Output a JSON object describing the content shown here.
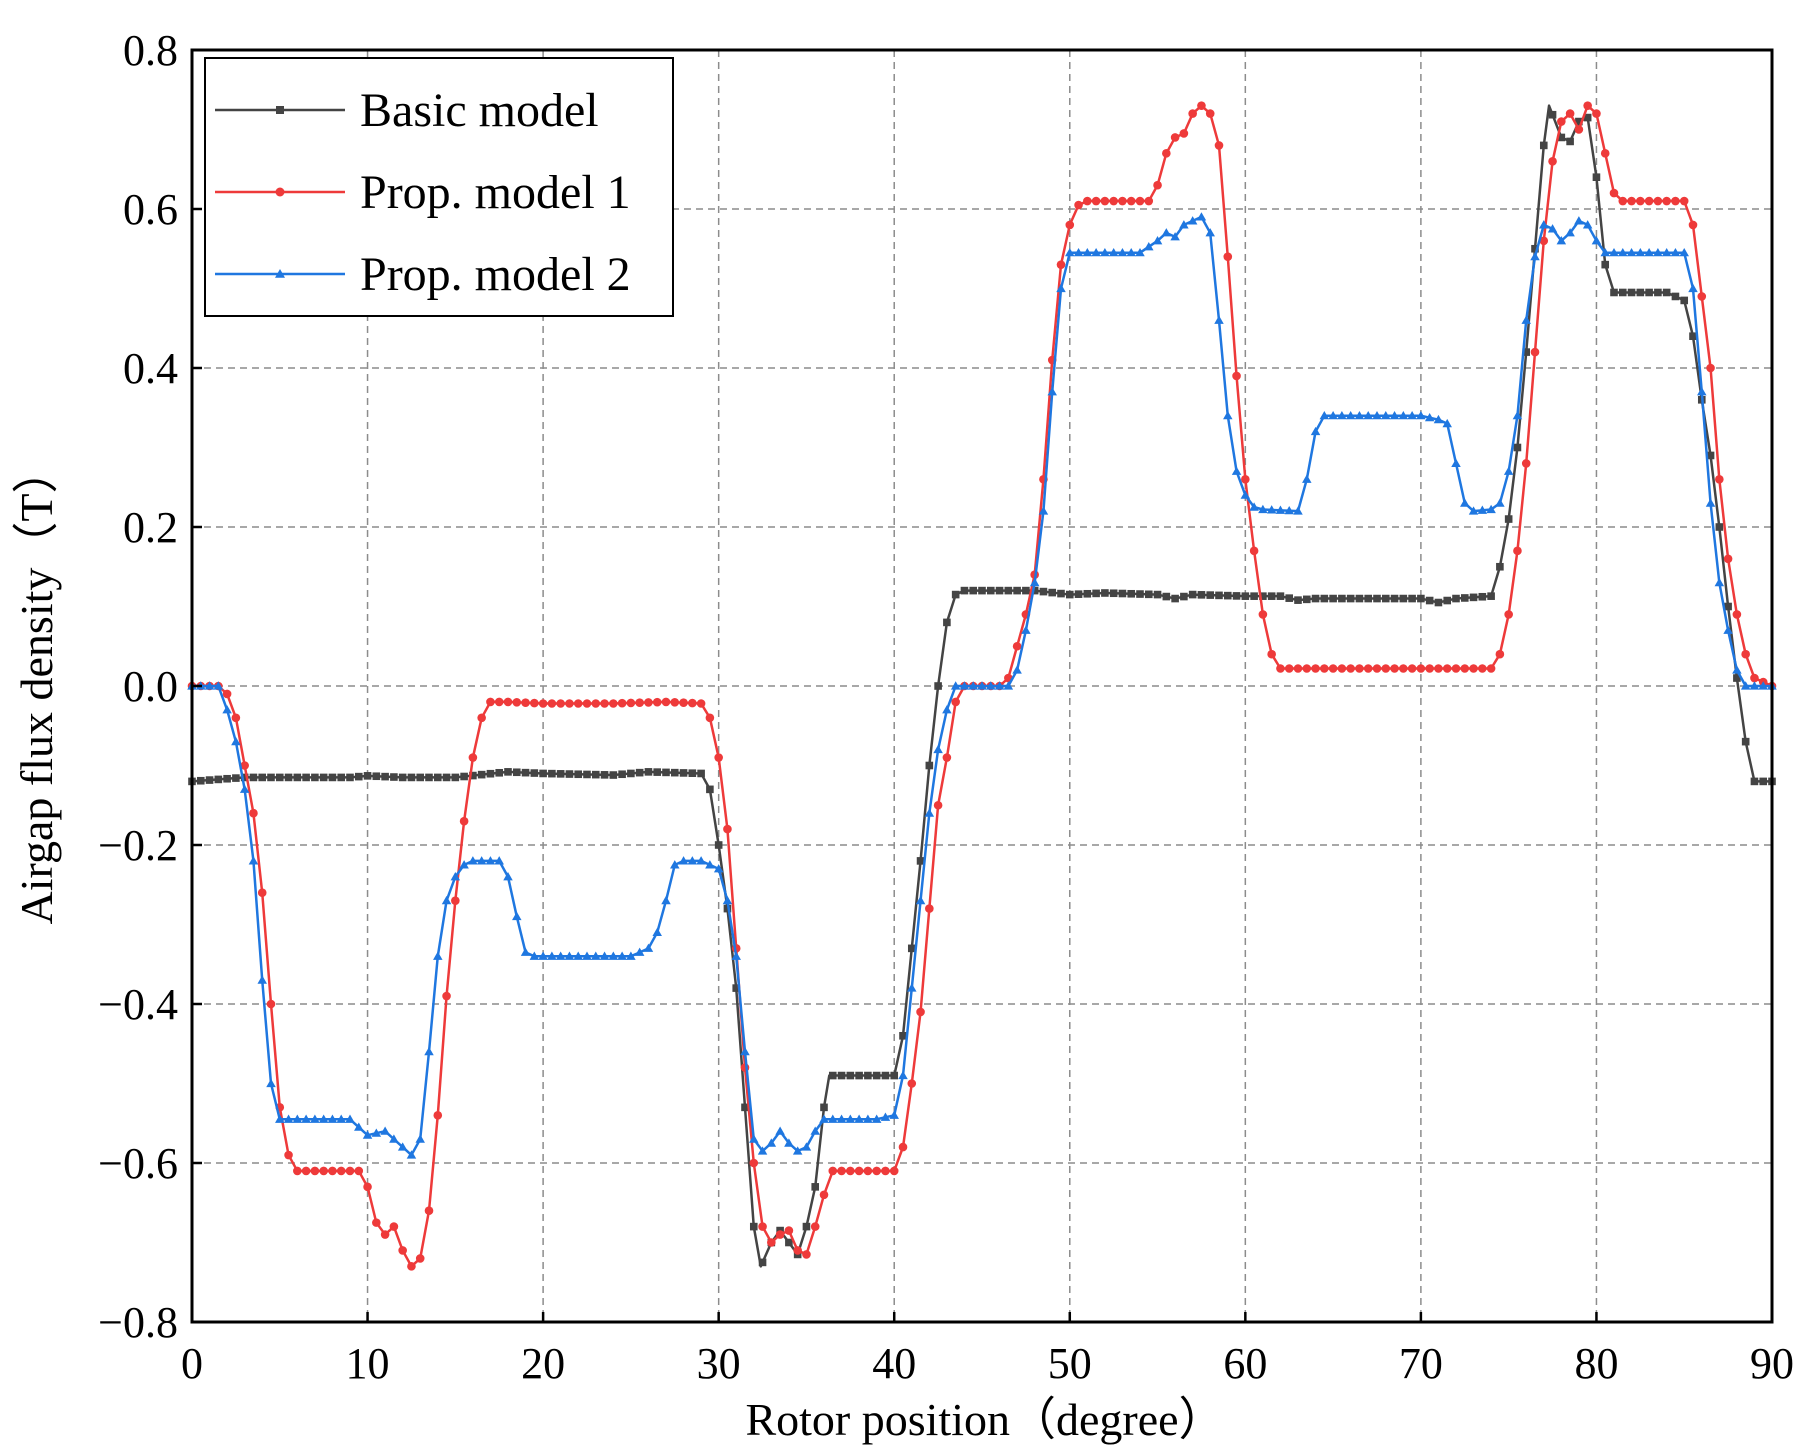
{
  "chart_data": {
    "type": "line",
    "title": "",
    "xlabel": "Rotor position（degree）",
    "ylabel": "Airgap flux density（T）",
    "xlim": [
      0,
      90
    ],
    "ylim": [
      -0.8,
      0.8
    ],
    "xticks": [
      0,
      10,
      20,
      30,
      40,
      50,
      60,
      70,
      80,
      90
    ],
    "yticks": [
      -0.8,
      -0.6,
      -0.4,
      -0.2,
      0.0,
      0.2,
      0.4,
      0.6,
      0.8
    ],
    "xtick_labels": [
      "0",
      "10",
      "20",
      "30",
      "40",
      "50",
      "60",
      "70",
      "80",
      "90"
    ],
    "ytick_labels": [
      "−0.8",
      "−0.6",
      "−0.4",
      "−0.2",
      "0.0",
      "0.2",
      "0.4",
      "0.6",
      "0.8"
    ],
    "grid": true,
    "legend_position": "top-left",
    "series": [
      {
        "name": "Basic model",
        "color": "#444444",
        "marker": "square",
        "points": [
          [
            0,
            -0.12
          ],
          [
            3,
            -0.115
          ],
          [
            6,
            -0.115
          ],
          [
            9,
            -0.115
          ],
          [
            10,
            -0.113
          ],
          [
            12,
            -0.115
          ],
          [
            15,
            -0.115
          ],
          [
            18,
            -0.108
          ],
          [
            20,
            -0.11
          ],
          [
            24,
            -0.112
          ],
          [
            26,
            -0.108
          ],
          [
            29,
            -0.11
          ],
          [
            29.5,
            -0.13
          ],
          [
            30,
            -0.2
          ],
          [
            30.5,
            -0.28
          ],
          [
            31,
            -0.38
          ],
          [
            31.5,
            -0.53
          ],
          [
            32,
            -0.68
          ],
          [
            32.4,
            -0.73
          ],
          [
            33,
            -0.7
          ],
          [
            33.5,
            -0.685
          ],
          [
            34,
            -0.7
          ],
          [
            34.5,
            -0.715
          ],
          [
            35,
            -0.68
          ],
          [
            35.5,
            -0.63
          ],
          [
            36,
            -0.53
          ],
          [
            36.3,
            -0.49
          ],
          [
            38,
            -0.49
          ],
          [
            40,
            -0.49
          ],
          [
            40.5,
            -0.44
          ],
          [
            41,
            -0.33
          ],
          [
            41.5,
            -0.22
          ],
          [
            42,
            -0.1
          ],
          [
            42.5,
            0.0
          ],
          [
            43,
            0.08
          ],
          [
            43.5,
            0.115
          ],
          [
            44,
            0.12
          ],
          [
            48,
            0.12
          ],
          [
            50,
            0.115
          ],
          [
            52,
            0.117
          ],
          [
            55,
            0.115
          ],
          [
            56,
            0.11
          ],
          [
            57,
            0.115
          ],
          [
            60,
            0.113
          ],
          [
            62,
            0.113
          ],
          [
            63,
            0.108
          ],
          [
            64,
            0.11
          ],
          [
            68,
            0.11
          ],
          [
            70,
            0.11
          ],
          [
            71,
            0.105
          ],
          [
            72,
            0.11
          ],
          [
            74,
            0.113
          ],
          [
            74.5,
            0.15
          ],
          [
            75,
            0.21
          ],
          [
            75.5,
            0.3
          ],
          [
            76,
            0.42
          ],
          [
            76.5,
            0.55
          ],
          [
            77,
            0.68
          ],
          [
            77.3,
            0.73
          ],
          [
            78,
            0.69
          ],
          [
            78.5,
            0.685
          ],
          [
            79,
            0.71
          ],
          [
            79.5,
            0.715
          ],
          [
            80,
            0.64
          ],
          [
            80.5,
            0.53
          ],
          [
            81,
            0.495
          ],
          [
            82,
            0.495
          ],
          [
            84,
            0.495
          ],
          [
            85,
            0.485
          ],
          [
            85.5,
            0.44
          ],
          [
            86,
            0.36
          ],
          [
            86.5,
            0.29
          ],
          [
            87,
            0.2
          ],
          [
            87.5,
            0.1
          ],
          [
            88,
            0.01
          ],
          [
            88.5,
            -0.07
          ],
          [
            89,
            -0.12
          ],
          [
            90,
            -0.12
          ]
        ]
      },
      {
        "name": "Prop. model 1",
        "color": "#ee3a3a",
        "marker": "circle",
        "points": [
          [
            0,
            0.0
          ],
          [
            1.5,
            0.0
          ],
          [
            2,
            -0.01
          ],
          [
            2.5,
            -0.04
          ],
          [
            3,
            -0.1
          ],
          [
            3.5,
            -0.16
          ],
          [
            4,
            -0.26
          ],
          [
            4.5,
            -0.4
          ],
          [
            5,
            -0.53
          ],
          [
            5.5,
            -0.59
          ],
          [
            6,
            -0.61
          ],
          [
            8,
            -0.61
          ],
          [
            9.5,
            -0.61
          ],
          [
            10,
            -0.63
          ],
          [
            10.5,
            -0.675
          ],
          [
            11,
            -0.69
          ],
          [
            11.5,
            -0.68
          ],
          [
            12,
            -0.71
          ],
          [
            12.5,
            -0.73
          ],
          [
            13,
            -0.72
          ],
          [
            13.5,
            -0.66
          ],
          [
            14,
            -0.54
          ],
          [
            14.5,
            -0.39
          ],
          [
            15,
            -0.27
          ],
          [
            15.5,
            -0.17
          ],
          [
            16,
            -0.09
          ],
          [
            16.5,
            -0.04
          ],
          [
            17,
            -0.02
          ],
          [
            18,
            -0.02
          ],
          [
            20,
            -0.022
          ],
          [
            24,
            -0.022
          ],
          [
            27,
            -0.02
          ],
          [
            29,
            -0.022
          ],
          [
            29.5,
            -0.04
          ],
          [
            30,
            -0.09
          ],
          [
            30.5,
            -0.18
          ],
          [
            31,
            -0.33
          ],
          [
            31.5,
            -0.48
          ],
          [
            32,
            -0.6
          ],
          [
            32.5,
            -0.68
          ],
          [
            33,
            -0.7
          ],
          [
            33.5,
            -0.69
          ],
          [
            34,
            -0.685
          ],
          [
            34.5,
            -0.71
          ],
          [
            35,
            -0.715
          ],
          [
            35.5,
            -0.68
          ],
          [
            36,
            -0.64
          ],
          [
            36.5,
            -0.61
          ],
          [
            38,
            -0.61
          ],
          [
            40,
            -0.61
          ],
          [
            40.5,
            -0.58
          ],
          [
            41,
            -0.5
          ],
          [
            41.5,
            -0.41
          ],
          [
            42,
            -0.28
          ],
          [
            42.5,
            -0.15
          ],
          [
            43,
            -0.09
          ],
          [
            43.5,
            -0.02
          ],
          [
            44,
            0.0
          ],
          [
            46,
            0.0
          ],
          [
            46.5,
            0.01
          ],
          [
            47,
            0.05
          ],
          [
            47.5,
            0.09
          ],
          [
            48,
            0.14
          ],
          [
            48.5,
            0.26
          ],
          [
            49,
            0.41
          ],
          [
            49.5,
            0.53
          ],
          [
            50,
            0.58
          ],
          [
            50.5,
            0.605
          ],
          [
            51,
            0.61
          ],
          [
            53,
            0.61
          ],
          [
            54.5,
            0.61
          ],
          [
            55,
            0.63
          ],
          [
            55.5,
            0.67
          ],
          [
            56,
            0.69
          ],
          [
            56.5,
            0.695
          ],
          [
            57,
            0.72
          ],
          [
            57.5,
            0.73
          ],
          [
            58,
            0.72
          ],
          [
            58.5,
            0.68
          ],
          [
            59,
            0.54
          ],
          [
            59.5,
            0.39
          ],
          [
            60,
            0.26
          ],
          [
            60.5,
            0.17
          ],
          [
            61,
            0.09
          ],
          [
            61.5,
            0.04
          ],
          [
            62,
            0.022
          ],
          [
            64,
            0.022
          ],
          [
            68,
            0.022
          ],
          [
            72,
            0.022
          ],
          [
            74,
            0.022
          ],
          [
            74.5,
            0.04
          ],
          [
            75,
            0.09
          ],
          [
            75.5,
            0.17
          ],
          [
            76,
            0.28
          ],
          [
            76.5,
            0.42
          ],
          [
            77,
            0.56
          ],
          [
            77.5,
            0.66
          ],
          [
            78,
            0.71
          ],
          [
            78.5,
            0.72
          ],
          [
            79,
            0.7
          ],
          [
            79.5,
            0.73
          ],
          [
            80,
            0.72
          ],
          [
            80.5,
            0.67
          ],
          [
            81,
            0.62
          ],
          [
            81.5,
            0.61
          ],
          [
            83,
            0.61
          ],
          [
            85,
            0.61
          ],
          [
            85.5,
            0.58
          ],
          [
            86,
            0.49
          ],
          [
            86.5,
            0.4
          ],
          [
            87,
            0.26
          ],
          [
            87.5,
            0.16
          ],
          [
            88,
            0.09
          ],
          [
            88.5,
            0.04
          ],
          [
            89,
            0.01
          ],
          [
            90,
            0.0
          ]
        ]
      },
      {
        "name": "Prop. model 2",
        "color": "#1f77e0",
        "marker": "triangle",
        "points": [
          [
            0,
            0.0
          ],
          [
            1.5,
            0.0
          ],
          [
            2,
            -0.03
          ],
          [
            2.5,
            -0.07
          ],
          [
            3,
            -0.13
          ],
          [
            3.5,
            -0.22
          ],
          [
            4,
            -0.37
          ],
          [
            4.5,
            -0.5
          ],
          [
            5,
            -0.545
          ],
          [
            6,
            -0.545
          ],
          [
            8,
            -0.545
          ],
          [
            9,
            -0.545
          ],
          [
            10,
            -0.565
          ],
          [
            11,
            -0.56
          ],
          [
            12,
            -0.58
          ],
          [
            12.5,
            -0.59
          ],
          [
            13,
            -0.57
          ],
          [
            13.5,
            -0.46
          ],
          [
            14,
            -0.34
          ],
          [
            14.5,
            -0.27
          ],
          [
            15,
            -0.24
          ],
          [
            15.5,
            -0.225
          ],
          [
            16,
            -0.22
          ],
          [
            17.5,
            -0.22
          ],
          [
            18,
            -0.24
          ],
          [
            18.5,
            -0.29
          ],
          [
            19,
            -0.335
          ],
          [
            19.5,
            -0.34
          ],
          [
            22,
            -0.34
          ],
          [
            25,
            -0.34
          ],
          [
            26,
            -0.33
          ],
          [
            26.5,
            -0.31
          ],
          [
            27,
            -0.27
          ],
          [
            27.5,
            -0.225
          ],
          [
            28,
            -0.22
          ],
          [
            29,
            -0.22
          ],
          [
            30,
            -0.23
          ],
          [
            30.5,
            -0.27
          ],
          [
            31,
            -0.34
          ],
          [
            31.5,
            -0.46
          ],
          [
            32,
            -0.57
          ],
          [
            32.5,
            -0.585
          ],
          [
            33,
            -0.575
          ],
          [
            33.5,
            -0.56
          ],
          [
            34,
            -0.575
          ],
          [
            34.5,
            -0.585
          ],
          [
            35,
            -0.58
          ],
          [
            35.5,
            -0.56
          ],
          [
            36,
            -0.545
          ],
          [
            37,
            -0.545
          ],
          [
            39,
            -0.545
          ],
          [
            40,
            -0.54
          ],
          [
            40.5,
            -0.49
          ],
          [
            41,
            -0.38
          ],
          [
            41.5,
            -0.27
          ],
          [
            42,
            -0.16
          ],
          [
            42.5,
            -0.08
          ],
          [
            43,
            -0.03
          ],
          [
            43.5,
            0.0
          ],
          [
            45,
            0.0
          ],
          [
            46.5,
            0.0
          ],
          [
            47,
            0.02
          ],
          [
            47.5,
            0.07
          ],
          [
            48,
            0.13
          ],
          [
            48.5,
            0.22
          ],
          [
            49,
            0.37
          ],
          [
            49.5,
            0.5
          ],
          [
            50,
            0.545
          ],
          [
            52,
            0.545
          ],
          [
            54,
            0.545
          ],
          [
            55,
            0.56
          ],
          [
            55.5,
            0.57
          ],
          [
            56,
            0.565
          ],
          [
            56.5,
            0.58
          ],
          [
            57,
            0.585
          ],
          [
            57.5,
            0.59
          ],
          [
            58,
            0.57
          ],
          [
            58.5,
            0.46
          ],
          [
            59,
            0.34
          ],
          [
            59.5,
            0.27
          ],
          [
            60,
            0.24
          ],
          [
            60.5,
            0.225
          ],
          [
            61,
            0.222
          ],
          [
            63,
            0.22
          ],
          [
            63.5,
            0.26
          ],
          [
            64,
            0.32
          ],
          [
            64.5,
            0.34
          ],
          [
            66,
            0.34
          ],
          [
            70,
            0.34
          ],
          [
            71,
            0.335
          ],
          [
            71.5,
            0.33
          ],
          [
            72,
            0.28
          ],
          [
            72.5,
            0.23
          ],
          [
            73,
            0.22
          ],
          [
            74,
            0.222
          ],
          [
            74.5,
            0.23
          ],
          [
            75,
            0.27
          ],
          [
            75.5,
            0.34
          ],
          [
            76,
            0.46
          ],
          [
            76.5,
            0.54
          ],
          [
            77,
            0.58
          ],
          [
            77.5,
            0.575
          ],
          [
            78,
            0.56
          ],
          [
            78.5,
            0.57
          ],
          [
            79,
            0.585
          ],
          [
            79.5,
            0.58
          ],
          [
            80,
            0.56
          ],
          [
            80.5,
            0.545
          ],
          [
            82,
            0.545
          ],
          [
            85,
            0.545
          ],
          [
            85.5,
            0.5
          ],
          [
            86,
            0.37
          ],
          [
            86.5,
            0.23
          ],
          [
            87,
            0.13
          ],
          [
            87.5,
            0.07
          ],
          [
            88,
            0.02
          ],
          [
            88.5,
            0.0
          ],
          [
            90,
            0.0
          ]
        ]
      }
    ]
  }
}
